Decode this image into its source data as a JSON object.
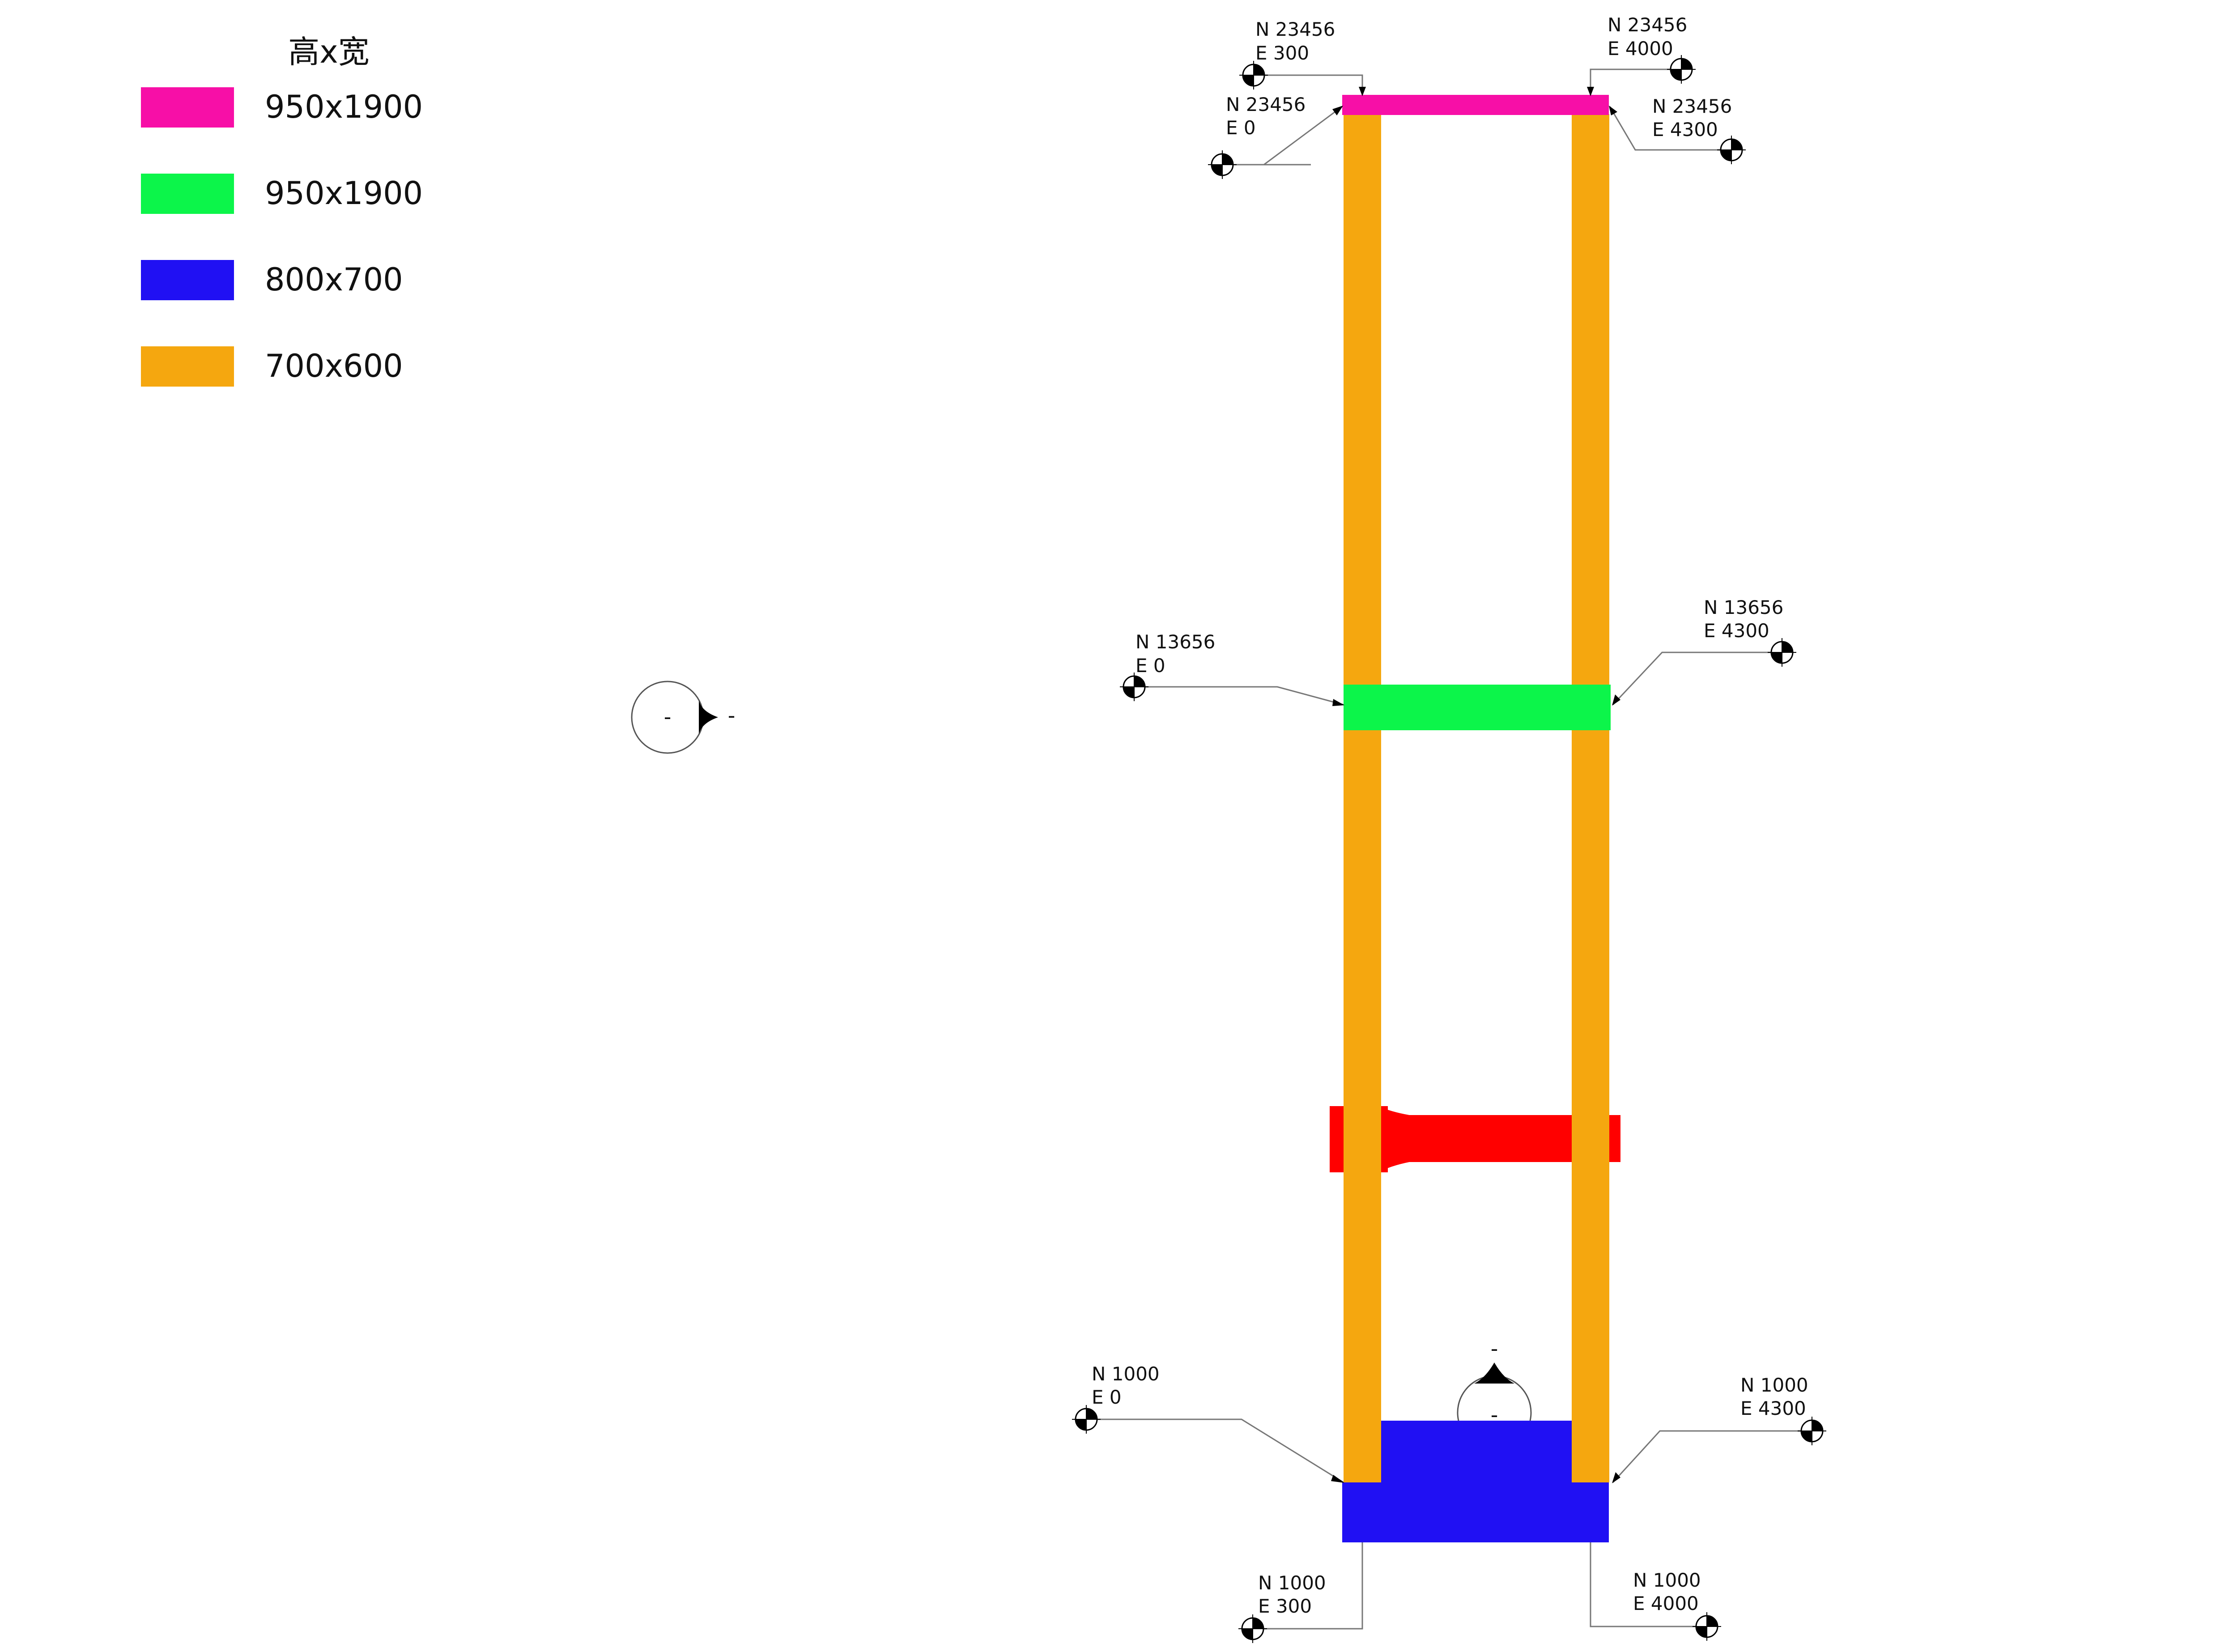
{
  "legend": {
    "title": "高x宽",
    "items": [
      {
        "label": "950x1900",
        "color": "#F70FA7"
      },
      {
        "label": "950x1900",
        "color": "#0CF54A"
      },
      {
        "label": "800x700",
        "color": "#2010F3"
      },
      {
        "label": "700x600",
        "color": "#F5A70F"
      }
    ]
  },
  "members": {
    "column_color": "#F5A70F",
    "top_beam_color": "#F70FA7",
    "mid_beam_color": "#0CF54A",
    "transition_beam_color": "#FF0000",
    "base_color": "#2010F3"
  },
  "section_marks": {
    "left_mark": {
      "inner_label": "-",
      "outer_label": "-",
      "icon": "section-arrow-icon"
    },
    "bottom_mark": {
      "top_label": "-",
      "inner_label": "-",
      "icon": "section-arrow-icon"
    }
  },
  "spot_coordinates": [
    {
      "id": "top-left-inner",
      "north": "N 23456",
      "east": "E 300",
      "icon": "survey-target-icon"
    },
    {
      "id": "top-right-inner",
      "north": "N 23456",
      "east": "E 4000",
      "icon": "survey-target-icon"
    },
    {
      "id": "top-left-outer",
      "north": "N 23456",
      "east": "E 0",
      "icon": "survey-target-icon"
    },
    {
      "id": "top-right-outer",
      "north": "N 23456",
      "east": "E 4300",
      "icon": "survey-target-icon"
    },
    {
      "id": "mid-left",
      "north": "N 13656",
      "east": "E 0",
      "icon": "survey-target-icon"
    },
    {
      "id": "mid-right",
      "north": "N 13656",
      "east": "E 4300",
      "icon": "survey-target-icon"
    },
    {
      "id": "base-left-outer",
      "north": "N 1000",
      "east": "E 0",
      "icon": "survey-target-icon"
    },
    {
      "id": "base-right-outer",
      "north": "N 1000",
      "east": "E 4300",
      "icon": "survey-target-icon"
    },
    {
      "id": "base-left-inner",
      "north": "N 1000",
      "east": "E 300",
      "icon": "survey-target-icon"
    },
    {
      "id": "base-right-inner",
      "north": "N 1000",
      "east": "E 4000",
      "icon": "survey-target-icon"
    }
  ]
}
